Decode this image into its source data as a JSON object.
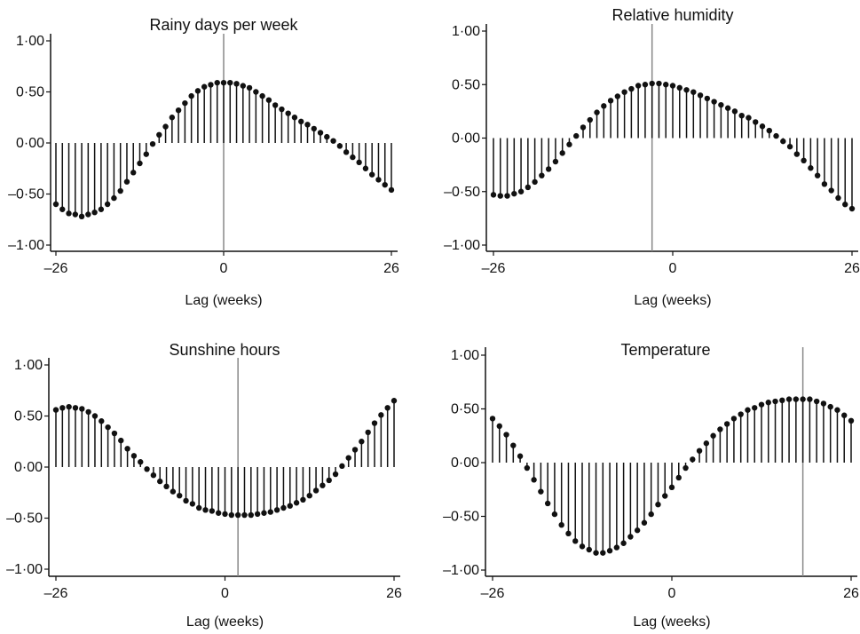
{
  "chart_data": [
    {
      "type": "stem",
      "title": "Rainy days per week",
      "xlabel": "Lag (weeks)",
      "ylabel": "",
      "xlim": [
        -26,
        26
      ],
      "ylim": [
        -1,
        1
      ],
      "xticks": [
        "–26",
        "0",
        "26"
      ],
      "yticks": [
        "1·00",
        "0·50",
        "0·00",
        "–0·50",
        "–1·00"
      ],
      "reference_lag": 0,
      "x_start": -26,
      "values": [
        -0.6,
        -0.65,
        -0.69,
        -0.7,
        -0.72,
        -0.7,
        -0.68,
        -0.65,
        -0.6,
        -0.54,
        -0.47,
        -0.38,
        -0.29,
        -0.2,
        -0.11,
        -0.01,
        0.08,
        0.16,
        0.25,
        0.32,
        0.39,
        0.46,
        0.51,
        0.55,
        0.57,
        0.59,
        0.59,
        0.59,
        0.58,
        0.56,
        0.54,
        0.5,
        0.46,
        0.42,
        0.37,
        0.33,
        0.29,
        0.25,
        0.21,
        0.18,
        0.14,
        0.1,
        0.06,
        0.02,
        -0.03,
        -0.09,
        -0.14,
        -0.19,
        -0.25,
        -0.31,
        -0.36,
        -0.41,
        -0.46
      ]
    },
    {
      "type": "stem",
      "title": "Relative humidity",
      "xlabel": "Lag (weeks)",
      "ylabel": "",
      "xlim": [
        -26,
        26
      ],
      "ylim": [
        -1,
        1
      ],
      "xticks": [
        "–26",
        "0",
        "26"
      ],
      "yticks": [
        "1·00",
        "0·50",
        "0·00",
        "–0·50",
        "–1·00"
      ],
      "reference_lag": -3,
      "x_start": -26,
      "values": [
        -0.53,
        -0.54,
        -0.54,
        -0.52,
        -0.5,
        -0.46,
        -0.41,
        -0.35,
        -0.29,
        -0.22,
        -0.14,
        -0.06,
        0.02,
        0.1,
        0.17,
        0.24,
        0.3,
        0.35,
        0.39,
        0.43,
        0.46,
        0.49,
        0.5,
        0.51,
        0.51,
        0.5,
        0.49,
        0.47,
        0.45,
        0.43,
        0.4,
        0.37,
        0.34,
        0.31,
        0.28,
        0.25,
        0.21,
        0.19,
        0.15,
        0.11,
        0.07,
        0.02,
        -0.03,
        -0.08,
        -0.15,
        -0.21,
        -0.28,
        -0.35,
        -0.43,
        -0.49,
        -0.56,
        -0.62,
        -0.66
      ]
    },
    {
      "type": "stem",
      "title": "Sunshine hours",
      "xlabel": "Lag (weeks)",
      "ylabel": "",
      "xlim": [
        -26,
        26
      ],
      "ylim": [
        -1,
        1
      ],
      "xticks": [
        "–26",
        "0",
        "26"
      ],
      "yticks": [
        "1·00",
        "0·50",
        "0·00",
        "–0·50",
        "–1·00"
      ],
      "reference_lag": 2,
      "x_start": -26,
      "values": [
        0.56,
        0.58,
        0.59,
        0.58,
        0.57,
        0.54,
        0.5,
        0.45,
        0.39,
        0.33,
        0.26,
        0.18,
        0.11,
        0.05,
        -0.02,
        -0.08,
        -0.14,
        -0.19,
        -0.24,
        -0.28,
        -0.33,
        -0.36,
        -0.4,
        -0.42,
        -0.43,
        -0.45,
        -0.46,
        -0.47,
        -0.47,
        -0.47,
        -0.47,
        -0.46,
        -0.45,
        -0.44,
        -0.42,
        -0.4,
        -0.38,
        -0.35,
        -0.32,
        -0.28,
        -0.23,
        -0.18,
        -0.13,
        -0.07,
        0.01,
        0.09,
        0.17,
        0.25,
        0.34,
        0.43,
        0.51,
        0.58,
        0.65
      ]
    },
    {
      "type": "stem",
      "title": "Temperature",
      "xlabel": "Lag (weeks)",
      "ylabel": "",
      "xlim": [
        -26,
        26
      ],
      "ylim": [
        -1,
        1
      ],
      "xticks": [
        "–26",
        "0",
        "26"
      ],
      "yticks": [
        "1·00",
        "0·50",
        "0·00",
        "–0·50",
        "–1·00"
      ],
      "reference_lag": 19,
      "x_start": -26,
      "values": [
        0.41,
        0.34,
        0.26,
        0.16,
        0.06,
        -0.05,
        -0.16,
        -0.27,
        -0.38,
        -0.48,
        -0.58,
        -0.66,
        -0.73,
        -0.78,
        -0.81,
        -0.84,
        -0.84,
        -0.82,
        -0.79,
        -0.75,
        -0.69,
        -0.63,
        -0.56,
        -0.48,
        -0.39,
        -0.31,
        -0.23,
        -0.14,
        -0.05,
        0.03,
        0.11,
        0.18,
        0.25,
        0.31,
        0.36,
        0.41,
        0.45,
        0.49,
        0.51,
        0.54,
        0.56,
        0.57,
        0.58,
        0.59,
        0.59,
        0.59,
        0.59,
        0.57,
        0.55,
        0.52,
        0.49,
        0.44,
        0.39
      ]
    }
  ],
  "colors": {
    "stem": "#111111",
    "reference_line": "#888888",
    "axis": "#111111"
  }
}
